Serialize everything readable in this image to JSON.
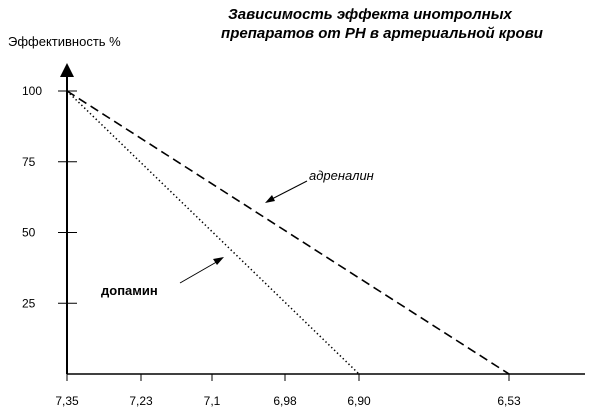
{
  "chart_data": {
    "type": "line",
    "title_lines": [
      "Зависимость эффекта инотролных",
      "препаратов от РН в артериальной крови"
    ],
    "ylabel": "Эффективность %",
    "xlabel": "",
    "x_ticks": [
      "7,35",
      "7,23",
      "7,1",
      "6,98",
      "6,90",
      "6,53"
    ],
    "y_ticks": [
      25,
      50,
      75,
      100
    ],
    "ylim": [
      0,
      110
    ],
    "grid": false,
    "series": [
      {
        "name": "адреналин",
        "style": "dashed",
        "points": [
          {
            "x": "7,35",
            "y": 100
          },
          {
            "x": "6,53",
            "y": 0
          }
        ]
      },
      {
        "name": "допамин",
        "style": "dotted",
        "points": [
          {
            "x": "7,35",
            "y": 100
          },
          {
            "x": "6,90",
            "y": 0
          }
        ]
      }
    ],
    "annotations": [
      {
        "text": "адреналин",
        "series": "адреналин",
        "style": "italic"
      },
      {
        "text": "допамин",
        "series": "допамин",
        "style": "bold"
      }
    ]
  }
}
